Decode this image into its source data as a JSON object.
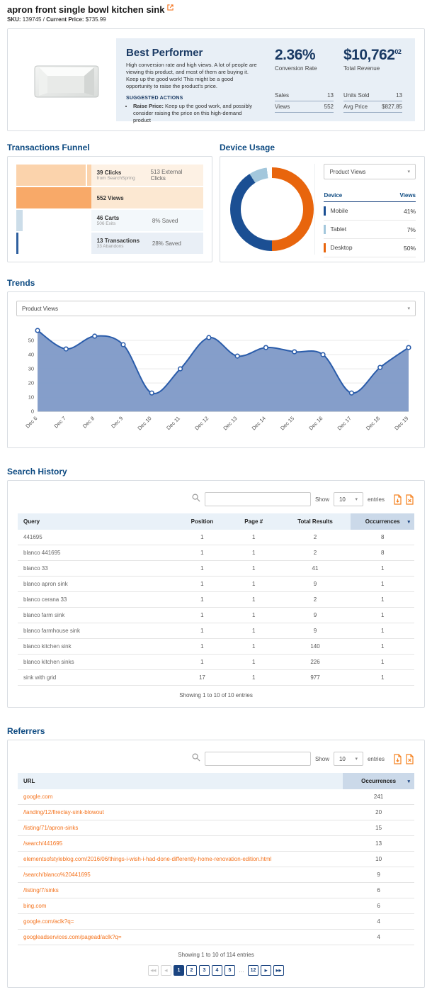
{
  "header": {
    "title": "apron front single bowl kitchen sink",
    "sku_label": "SKU:",
    "sku_value": "139745",
    "sep": "/",
    "price_label": "Current Price:",
    "price_value": "$735.99"
  },
  "best_performer": {
    "title": "Best Performer",
    "description": "High conversion rate and high views. A lot of people are viewing this product, and most of them are buying it. Keep up the good work! This might be a good opportunity to raise the product's price.",
    "suggested_actions_label": "SUGGESTED ACTIONS",
    "actions": [
      {
        "bold": "Raise Price:",
        "text": " Keep up the good work, and possibly consider raising the price on this high-demand product"
      }
    ],
    "stats": [
      {
        "value": "2.36%",
        "sup": "",
        "label": "Conversion Rate",
        "mini": [
          [
            "Sales",
            "13"
          ],
          [
            "Views",
            "552"
          ]
        ]
      },
      {
        "value": "$10,762",
        "sup": "02",
        "label": "Total Revenue",
        "mini": [
          [
            "Units Sold",
            "13"
          ],
          [
            "Avg Price",
            "$827.85"
          ]
        ]
      }
    ]
  },
  "funnel": {
    "title": "Transactions Funnel",
    "rows": [
      {
        "label": "39 Clicks",
        "sublabel": "from SearchSpring",
        "extra": "513 External Clicks",
        "bar_pct": 100,
        "divider_pct": 93,
        "bar_color": "#fbd3ac",
        "row_bg": "#fdf1e4"
      },
      {
        "label": "552 Views",
        "sublabel": "",
        "extra": "",
        "bar_pct": 100,
        "divider_pct": null,
        "bar_color": "#f8a968",
        "row_bg": "#fce8d2"
      },
      {
        "label": "46 Carts",
        "sublabel": "506 Exits",
        "extra": "8% Saved",
        "bar_pct": 8.3,
        "divider_pct": null,
        "bar_color": "#ccdde9",
        "row_bg": "#f3f8fb"
      },
      {
        "label": "13 Transactions",
        "sublabel": "33 Abandons",
        "extra": "28% Saved",
        "bar_pct": 2.4,
        "divider_pct": null,
        "bar_color": "#2e5f9e",
        "row_bg": "#e9eff6"
      }
    ]
  },
  "device_usage": {
    "title": "Device Usage",
    "dropdown_value": "Product Views",
    "table": {
      "columns": [
        "Device",
        "Views"
      ],
      "rows": [
        {
          "label": "Mobile",
          "value": "41%",
          "color": "#1b4f93"
        },
        {
          "label": "Tablet",
          "value": "7%",
          "color": "#a3c7dc"
        },
        {
          "label": "Desktop",
          "value": "50%",
          "color": "#e8650d"
        }
      ]
    }
  },
  "trends": {
    "title": "Trends",
    "dropdown_value": "Product Views"
  },
  "chart_data": [
    {
      "type": "pie",
      "title": "Device Usage - Product Views",
      "labels": [
        "Desktop",
        "Mobile",
        "Tablet"
      ],
      "values": [
        50,
        41,
        7
      ],
      "unit": "%",
      "colors": [
        "#e8650d",
        "#1b4f93",
        "#a3c7dc"
      ],
      "donut": true,
      "legend_position": "right-table"
    },
    {
      "type": "area",
      "title": "Trends - Product Views",
      "x": [
        "Dec 6",
        "Dec 7",
        "Dec 8",
        "Dec 9",
        "Dec 10",
        "Dec 11",
        "Dec 12",
        "Dec 13",
        "Dec 14",
        "Dec 15",
        "Dec 16",
        "Dec 17",
        "Dec 18",
        "Dec 19"
      ],
      "values": [
        57,
        44,
        53,
        47,
        13,
        30,
        52,
        39,
        45,
        42,
        40,
        13,
        31,
        45
      ],
      "ylim": [
        0,
        60
      ],
      "yticks": [
        0,
        10,
        20,
        30,
        40,
        50
      ],
      "grid": true,
      "line_color": "#2a5caa",
      "fill_color": "#7b96c6",
      "marker": "white-circle"
    }
  ],
  "search_history": {
    "title": "Search History",
    "controls": {
      "search_placeholder": "",
      "show_label": "Show",
      "show_value": "10",
      "entries_label": "entries"
    },
    "columns": [
      "Query",
      "Position",
      "Page #",
      "Total Results",
      "Occurrences"
    ],
    "sorted_column": "Occurrences",
    "rows": [
      [
        "441695",
        "1",
        "1",
        "2",
        "8"
      ],
      [
        "blanco 441695",
        "1",
        "1",
        "2",
        "8"
      ],
      [
        "blanco 33",
        "1",
        "1",
        "41",
        "1"
      ],
      [
        "blanco apron sink",
        "1",
        "1",
        "9",
        "1"
      ],
      [
        "blanco cerana 33",
        "1",
        "1",
        "2",
        "1"
      ],
      [
        "blanco farm sink",
        "1",
        "1",
        "9",
        "1"
      ],
      [
        "blanco farmhouse sink",
        "1",
        "1",
        "9",
        "1"
      ],
      [
        "blanco kitchen sink",
        "1",
        "1",
        "140",
        "1"
      ],
      [
        "blanco kitchen sinks",
        "1",
        "1",
        "226",
        "1"
      ],
      [
        "sink with grid",
        "17",
        "1",
        "977",
        "1"
      ]
    ],
    "footer": "Showing 1 to 10 of 10 entries"
  },
  "referrers": {
    "title": "Referrers",
    "controls": {
      "search_placeholder": "",
      "show_label": "Show",
      "show_value": "10",
      "entries_label": "entries"
    },
    "columns": [
      "URL",
      "Occurrences"
    ],
    "sorted_column": "Occurrences",
    "rows": [
      [
        "google.com",
        "241"
      ],
      [
        "/landing/12/fireclay-sink-blowout",
        "20"
      ],
      [
        "/listing/71/apron-sinks",
        "15"
      ],
      [
        "/search/441695",
        "13"
      ],
      [
        "elementsofstyleblog.com/2016/06/things-i-wish-i-had-done-differently-home-renovation-edition.html",
        "10"
      ],
      [
        "/search/blanco%20441695",
        "9"
      ],
      [
        "/listing/7/sinks",
        "6"
      ],
      [
        "bing.com",
        "6"
      ],
      [
        "google.com/aclk?q=",
        "4"
      ],
      [
        "googleadservices.com/pagead/aclk?q=",
        "4"
      ]
    ],
    "footer": "Showing 1 to 10 of 114 entries",
    "pagination": {
      "first_icon": "◀◀",
      "prev_icon": "◀",
      "next_icon": "▶",
      "last_icon": "▶▶",
      "pages": [
        "1",
        "2",
        "3",
        "4",
        "5"
      ],
      "ellipsis": "…",
      "far_page": "12",
      "active": "1"
    }
  },
  "colors": {
    "heading_navy": "#0d4a81",
    "stat_navy": "#1a3a64",
    "link_orange": "#f4731e",
    "export_icon_orange": "#f58220",
    "pagination_navy": "#1a4480",
    "table_header_bg": "#e9f1f8",
    "sorted_col_bg": "#cbd9e9",
    "bp_panel_bg": "#e8eff6"
  }
}
